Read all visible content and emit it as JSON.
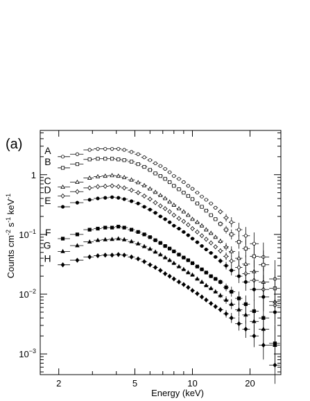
{
  "chart_data": {
    "type": "scatter",
    "panel_label": "(a)",
    "title": "",
    "xlabel": "Energy (keV)",
    "ylabel": "Counts cm^-2 s^-1 keV^-1",
    "xscale": "log",
    "yscale": "log",
    "xlim": [
      1.6,
      29
    ],
    "ylim": [
      0.00045,
      5.5
    ],
    "xticks": [
      2,
      5,
      10,
      20
    ],
    "yticks": [
      0.001,
      0.01,
      0.1,
      1
    ],
    "ytick_labels": {
      "0.001": {
        "base": "10",
        "exp": "−3"
      },
      "0.01": {
        "base": "10",
        "exp": "−2"
      },
      "0.1": {
        "base": "10",
        "exp": "−1"
      },
      "1": {
        "base": "1",
        "exp": ""
      }
    },
    "grid": false,
    "series": [
      {
        "name": "A",
        "marker": "circle-open",
        "points": [
          [
            2.1,
            2.0
          ],
          [
            2.5,
            2.2
          ],
          [
            2.9,
            2.6
          ],
          [
            3.2,
            2.7
          ],
          [
            3.5,
            2.7
          ],
          [
            3.8,
            2.7
          ],
          [
            4.1,
            2.7
          ],
          [
            4.4,
            2.6
          ],
          [
            4.8,
            2.4
          ],
          [
            5.2,
            2.2
          ],
          [
            5.6,
            1.95
          ],
          [
            6.0,
            1.75
          ],
          [
            6.4,
            1.55
          ],
          [
            6.8,
            1.4
          ],
          [
            7.2,
            1.25
          ],
          [
            7.6,
            1.1
          ],
          [
            8.0,
            0.95
          ],
          [
            8.5,
            0.85
          ],
          [
            9.0,
            0.75
          ],
          [
            9.5,
            0.65
          ],
          [
            10.0,
            0.58
          ],
          [
            10.6,
            0.5
          ],
          [
            11.2,
            0.43
          ],
          [
            11.8,
            0.38
          ],
          [
            12.5,
            0.33
          ],
          [
            13.2,
            0.28
          ],
          [
            14.0,
            0.24
          ],
          [
            15.0,
            0.19
          ],
          [
            16.0,
            0.16
          ],
          [
            17.5,
            0.12
          ],
          [
            19.0,
            0.095
          ],
          [
            21.0,
            0.07
          ],
          [
            23.5,
            0.042
          ],
          [
            27.0,
            0.018
          ]
        ]
      },
      {
        "name": "B",
        "marker": "square-open",
        "points": [
          [
            2.1,
            1.3
          ],
          [
            2.5,
            1.5
          ],
          [
            2.9,
            1.8
          ],
          [
            3.2,
            1.85
          ],
          [
            3.5,
            1.85
          ],
          [
            3.8,
            1.85
          ],
          [
            4.1,
            1.8
          ],
          [
            4.4,
            1.75
          ],
          [
            4.8,
            1.65
          ],
          [
            5.2,
            1.5
          ],
          [
            5.6,
            1.35
          ],
          [
            6.0,
            1.2
          ],
          [
            6.4,
            1.05
          ],
          [
            6.8,
            0.95
          ],
          [
            7.2,
            0.85
          ],
          [
            7.6,
            0.75
          ],
          [
            8.0,
            0.65
          ],
          [
            8.5,
            0.57
          ],
          [
            9.0,
            0.5
          ],
          [
            9.5,
            0.44
          ],
          [
            10.0,
            0.39
          ],
          [
            10.6,
            0.33
          ],
          [
            11.2,
            0.29
          ],
          [
            11.8,
            0.25
          ],
          [
            12.5,
            0.21
          ],
          [
            13.2,
            0.18
          ],
          [
            14.0,
            0.15
          ],
          [
            15.0,
            0.12
          ],
          [
            16.0,
            0.1
          ],
          [
            17.5,
            0.075
          ],
          [
            19.0,
            0.058
          ],
          [
            21.0,
            0.043
          ],
          [
            23.5,
            0.031
          ],
          [
            27.0,
            0.0125
          ]
        ]
      },
      {
        "name": "C",
        "marker": "triangle-open",
        "points": [
          [
            2.1,
            0.62
          ],
          [
            2.5,
            0.75
          ],
          [
            2.9,
            0.88
          ],
          [
            3.2,
            0.93
          ],
          [
            3.5,
            0.95
          ],
          [
            3.8,
            0.97
          ],
          [
            4.1,
            0.95
          ],
          [
            4.4,
            0.9
          ],
          [
            4.8,
            0.82
          ],
          [
            5.2,
            0.74
          ],
          [
            5.6,
            0.66
          ],
          [
            6.0,
            0.58
          ],
          [
            6.4,
            0.51
          ],
          [
            6.8,
            0.45
          ],
          [
            7.2,
            0.4
          ],
          [
            7.6,
            0.35
          ],
          [
            8.0,
            0.31
          ],
          [
            8.5,
            0.27
          ],
          [
            9.0,
            0.24
          ],
          [
            9.5,
            0.21
          ],
          [
            10.0,
            0.18
          ],
          [
            10.6,
            0.16
          ],
          [
            11.2,
            0.14
          ],
          [
            11.8,
            0.12
          ],
          [
            12.5,
            0.105
          ],
          [
            13.2,
            0.09
          ],
          [
            14.0,
            0.077
          ],
          [
            15.0,
            0.062
          ],
          [
            16.0,
            0.052
          ],
          [
            17.5,
            0.04
          ],
          [
            19.0,
            0.032
          ],
          [
            21.0,
            0.024
          ],
          [
            23.5,
            0.016
          ],
          [
            27.0,
            0.0075
          ]
        ]
      },
      {
        "name": "D",
        "marker": "diamond-open",
        "points": [
          [
            2.1,
            0.44
          ],
          [
            2.5,
            0.52
          ],
          [
            2.9,
            0.6
          ],
          [
            3.2,
            0.63
          ],
          [
            3.5,
            0.64
          ],
          [
            3.8,
            0.65
          ],
          [
            4.1,
            0.63
          ],
          [
            4.4,
            0.6
          ],
          [
            4.8,
            0.55
          ],
          [
            5.2,
            0.5
          ],
          [
            5.6,
            0.44
          ],
          [
            6.0,
            0.39
          ],
          [
            6.4,
            0.34
          ],
          [
            6.8,
            0.3
          ],
          [
            7.2,
            0.27
          ],
          [
            7.6,
            0.24
          ],
          [
            8.0,
            0.21
          ],
          [
            8.5,
            0.185
          ],
          [
            9.0,
            0.165
          ],
          [
            9.5,
            0.145
          ],
          [
            10.0,
            0.125
          ],
          [
            10.6,
            0.11
          ],
          [
            11.2,
            0.095
          ],
          [
            11.8,
            0.083
          ],
          [
            12.5,
            0.072
          ],
          [
            13.2,
            0.062
          ],
          [
            14.0,
            0.053
          ],
          [
            15.0,
            0.043
          ],
          [
            16.0,
            0.036
          ],
          [
            17.5,
            0.028
          ],
          [
            19.0,
            0.022
          ],
          [
            21.0,
            0.017
          ],
          [
            23.5,
            0.012
          ],
          [
            27.0,
            0.0065
          ]
        ]
      },
      {
        "name": "E",
        "marker": "circle-filled",
        "points": [
          [
            2.1,
            0.29
          ],
          [
            2.5,
            0.34
          ],
          [
            2.9,
            0.38
          ],
          [
            3.2,
            0.4
          ],
          [
            3.5,
            0.41
          ],
          [
            3.8,
            0.42
          ],
          [
            4.1,
            0.41
          ],
          [
            4.4,
            0.39
          ],
          [
            4.8,
            0.36
          ],
          [
            5.2,
            0.33
          ],
          [
            5.6,
            0.29
          ],
          [
            6.0,
            0.26
          ],
          [
            6.4,
            0.23
          ],
          [
            6.8,
            0.2
          ],
          [
            7.2,
            0.18
          ],
          [
            7.6,
            0.16
          ],
          [
            8.0,
            0.14
          ],
          [
            8.5,
            0.125
          ],
          [
            9.0,
            0.11
          ],
          [
            9.5,
            0.097
          ],
          [
            10.0,
            0.085
          ],
          [
            10.6,
            0.074
          ],
          [
            11.2,
            0.064
          ],
          [
            11.8,
            0.056
          ],
          [
            12.5,
            0.049
          ],
          [
            13.2,
            0.042
          ],
          [
            14.0,
            0.036
          ],
          [
            15.0,
            0.03
          ],
          [
            16.0,
            0.025
          ],
          [
            17.5,
            0.02
          ],
          [
            19.0,
            0.016
          ],
          [
            21.0,
            0.012
          ],
          [
            23.5,
            0.009
          ],
          [
            27.0,
            0.005
          ]
        ]
      },
      {
        "name": "F",
        "marker": "square-filled",
        "points": [
          [
            2.1,
            0.085
          ],
          [
            2.5,
            0.1
          ],
          [
            2.9,
            0.12
          ],
          [
            3.2,
            0.125
          ],
          [
            3.5,
            0.13
          ],
          [
            3.8,
            0.13
          ],
          [
            4.1,
            0.135
          ],
          [
            4.4,
            0.13
          ],
          [
            4.8,
            0.12
          ],
          [
            5.2,
            0.11
          ],
          [
            5.6,
            0.1
          ],
          [
            6.0,
            0.09
          ],
          [
            6.4,
            0.08
          ],
          [
            6.8,
            0.072
          ],
          [
            7.2,
            0.064
          ],
          [
            7.6,
            0.058
          ],
          [
            8.0,
            0.052
          ],
          [
            8.5,
            0.046
          ],
          [
            9.0,
            0.041
          ],
          [
            9.5,
            0.037
          ],
          [
            10.0,
            0.033
          ],
          [
            10.6,
            0.029
          ],
          [
            11.2,
            0.026
          ],
          [
            11.8,
            0.023
          ],
          [
            12.5,
            0.02
          ],
          [
            13.2,
            0.018
          ],
          [
            14.0,
            0.016
          ],
          [
            15.0,
            0.013
          ],
          [
            16.0,
            0.011
          ],
          [
            17.5,
            0.0085
          ],
          [
            19.0,
            0.0068
          ],
          [
            21.0,
            0.0052
          ],
          [
            23.5,
            0.004
          ],
          [
            27.0,
            0.0015
          ]
        ]
      },
      {
        "name": "G",
        "marker": "triangle-filled",
        "points": [
          [
            2.1,
            0.052
          ],
          [
            2.5,
            0.065
          ],
          [
            2.9,
            0.075
          ],
          [
            3.2,
            0.08
          ],
          [
            3.5,
            0.082
          ],
          [
            3.8,
            0.083
          ],
          [
            4.1,
            0.085
          ],
          [
            4.4,
            0.082
          ],
          [
            4.8,
            0.076
          ],
          [
            5.2,
            0.07
          ],
          [
            5.6,
            0.063
          ],
          [
            6.0,
            0.057
          ],
          [
            6.4,
            0.051
          ],
          [
            6.8,
            0.046
          ],
          [
            7.2,
            0.041
          ],
          [
            7.6,
            0.037
          ],
          [
            8.0,
            0.033
          ],
          [
            8.5,
            0.029
          ],
          [
            9.0,
            0.026
          ],
          [
            9.5,
            0.023
          ],
          [
            10.0,
            0.021
          ],
          [
            10.6,
            0.018
          ],
          [
            11.2,
            0.016
          ],
          [
            11.8,
            0.014
          ],
          [
            12.5,
            0.0125
          ],
          [
            13.2,
            0.011
          ],
          [
            14.0,
            0.0095
          ],
          [
            15.0,
            0.008
          ],
          [
            16.0,
            0.0068
          ],
          [
            17.5,
            0.0055
          ],
          [
            19.0,
            0.0045
          ],
          [
            21.0,
            0.0035
          ],
          [
            23.5,
            0.0026
          ],
          [
            27.0,
            0.0014
          ]
        ]
      },
      {
        "name": "H",
        "marker": "diamond-filled",
        "points": [
          [
            2.1,
            0.031
          ],
          [
            2.5,
            0.037
          ],
          [
            2.9,
            0.042
          ],
          [
            3.2,
            0.044
          ],
          [
            3.5,
            0.045
          ],
          [
            3.8,
            0.045
          ],
          [
            4.1,
            0.046
          ],
          [
            4.4,
            0.045
          ],
          [
            4.8,
            0.042
          ],
          [
            5.2,
            0.039
          ],
          [
            5.6,
            0.035
          ],
          [
            6.0,
            0.031
          ],
          [
            6.4,
            0.028
          ],
          [
            6.8,
            0.025
          ],
          [
            7.2,
            0.022
          ],
          [
            7.6,
            0.02
          ],
          [
            8.0,
            0.018
          ],
          [
            8.5,
            0.016
          ],
          [
            9.0,
            0.0145
          ],
          [
            9.5,
            0.013
          ],
          [
            10.0,
            0.0115
          ],
          [
            10.6,
            0.0102
          ],
          [
            11.2,
            0.009
          ],
          [
            11.8,
            0.008
          ],
          [
            12.5,
            0.007
          ],
          [
            13.2,
            0.0062
          ],
          [
            14.0,
            0.0055
          ],
          [
            15.0,
            0.0047
          ],
          [
            16.0,
            0.004
          ],
          [
            17.5,
            0.0032
          ],
          [
            19.0,
            0.0026
          ],
          [
            21.0,
            0.002
          ],
          [
            23.5,
            0.0014
          ],
          [
            27.0,
            0.00065
          ]
        ]
      }
    ]
  }
}
